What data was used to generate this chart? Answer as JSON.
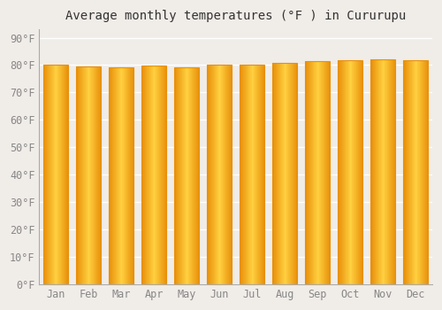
{
  "title": "Average monthly temperatures (°F ) in Cururupu",
  "months": [
    "Jan",
    "Feb",
    "Mar",
    "Apr",
    "May",
    "Jun",
    "Jul",
    "Aug",
    "Sep",
    "Oct",
    "Nov",
    "Dec"
  ],
  "values": [
    80.2,
    79.5,
    79.2,
    79.8,
    79.1,
    80.0,
    80.1,
    80.7,
    81.3,
    81.8,
    82.1,
    81.9
  ],
  "bar_color_edge": "#E8900A",
  "bar_color_center": "#FFD040",
  "bar_color_main": "#FFA918",
  "yticks": [
    0,
    10,
    20,
    30,
    40,
    50,
    60,
    70,
    80,
    90
  ],
  "ylim": [
    0,
    93
  ],
  "background_color": "#f0ece8",
  "plot_bg_color": "#f0ece8",
  "grid_color": "#ffffff",
  "title_fontsize": 10,
  "tick_fontsize": 8.5
}
